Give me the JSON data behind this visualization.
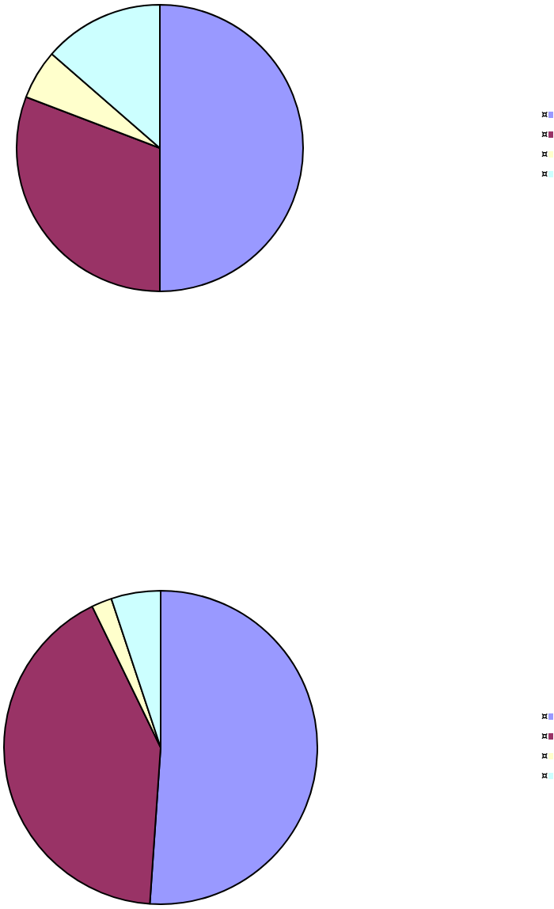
{
  "chart_data": [
    {
      "type": "pie",
      "categories": [
        "¤",
        "¤",
        "¤",
        "¤"
      ],
      "values": [
        50,
        30.8,
        5.6,
        13.6
      ],
      "colors": [
        "#9999ff",
        "#993366",
        "#ffffcc",
        "#ccffff"
      ],
      "legend": "right"
    },
    {
      "type": "pie",
      "categories": [
        "¤",
        "¤",
        "¤",
        "¤"
      ],
      "values": [
        51.1,
        41.7,
        2.1,
        5.1
      ],
      "colors": [
        "#9999ff",
        "#993366",
        "#ffffcc",
        "#ccffff"
      ],
      "legend": "right"
    }
  ]
}
